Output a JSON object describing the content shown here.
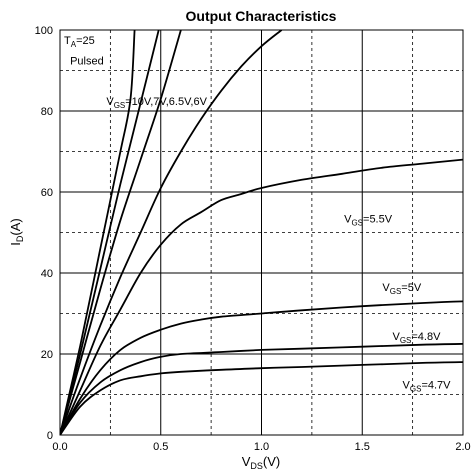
{
  "chart_data": {
    "type": "line",
    "title": "Output Characteristics",
    "xlabel": {
      "main": "V",
      "sub": "DS",
      "unit": "(V)"
    },
    "ylabel": {
      "main": "I",
      "sub": "D",
      "unit": "(A)"
    },
    "xlim": [
      0,
      2.0
    ],
    "ylim": [
      0,
      100
    ],
    "x_ticks": [
      {
        "value": 0.0,
        "label": "0.0"
      },
      {
        "value": 0.5,
        "label": "0.5"
      },
      {
        "value": 1.0,
        "label": "1.0"
      },
      {
        "value": 1.5,
        "label": "1.5"
      },
      {
        "value": 2.0,
        "label": "2.0"
      }
    ],
    "y_ticks": [
      {
        "value": 0,
        "label": "0"
      },
      {
        "value": 20,
        "label": "20"
      },
      {
        "value": 40,
        "label": "40"
      },
      {
        "value": 60,
        "label": "60"
      },
      {
        "value": 80,
        "label": "80"
      },
      {
        "value": 100,
        "label": "100"
      }
    ],
    "grid": {
      "major": true,
      "minor_dashed": true
    },
    "series": [
      {
        "x": [
          0,
          0.1,
          0.2,
          0.3,
          0.35,
          0.37
        ],
        "y": [
          0,
          22,
          46,
          70,
          83,
          100
        ]
      },
      {
        "x": [
          0,
          0.1,
          0.2,
          0.3,
          0.4,
          0.49
        ],
        "y": [
          0,
          20,
          41,
          62,
          82,
          100
        ]
      },
      {
        "x": [
          0,
          0.1,
          0.2,
          0.3,
          0.4,
          0.5,
          0.6
        ],
        "y": [
          0,
          18,
          36,
          53,
          68,
          83,
          100
        ]
      },
      {
        "x": [
          0,
          0.1,
          0.2,
          0.3,
          0.4,
          0.5,
          0.6,
          0.7,
          0.8,
          0.9,
          1.0,
          1.1
        ],
        "y": [
          0,
          14,
          27,
          39,
          50,
          61,
          70,
          78,
          85,
          91,
          96,
          100
        ]
      },
      {
        "x": [
          0,
          0.1,
          0.2,
          0.3,
          0.4,
          0.5,
          0.6,
          0.7,
          0.8,
          0.9,
          1.0,
          1.2,
          1.4,
          1.6,
          1.8,
          2.0
        ],
        "y": [
          0,
          11,
          22,
          31,
          40,
          47,
          52,
          55,
          58,
          59.5,
          61,
          63,
          64.5,
          66,
          67,
          68
        ]
      },
      {
        "x": [
          0,
          0.1,
          0.2,
          0.3,
          0.4,
          0.5,
          0.6,
          0.7,
          0.8,
          1.0,
          1.2,
          1.5,
          1.8,
          2.0
        ],
        "y": [
          0,
          9,
          16,
          21,
          24,
          26,
          27.5,
          28.5,
          29.2,
          30,
          30.8,
          31.8,
          32.6,
          33
        ]
      },
      {
        "x": [
          0,
          0.1,
          0.2,
          0.3,
          0.4,
          0.5,
          0.6,
          0.8,
          1.0,
          1.2,
          1.5,
          1.8,
          2.0
        ],
        "y": [
          0,
          8,
          13,
          16,
          18,
          19.3,
          20,
          20.5,
          21,
          21.3,
          21.8,
          22.3,
          22.5
        ]
      },
      {
        "x": [
          0,
          0.1,
          0.2,
          0.3,
          0.4,
          0.5,
          0.6,
          0.8,
          1.0,
          1.2,
          1.5,
          1.8,
          2.0
        ],
        "y": [
          0,
          7,
          11,
          13.5,
          14.5,
          15.2,
          15.6,
          16.1,
          16.5,
          16.8,
          17.3,
          17.8,
          18
        ]
      }
    ],
    "annotations": [
      {
        "id": "ta",
        "main": "T",
        "sub": "A",
        "rest": "=25",
        "x": 0.02,
        "y": 96.5
      },
      {
        "id": "pulsed",
        "text": "Pulsed",
        "x": 0.05,
        "y": 91.5
      },
      {
        "id": "vgs_hi",
        "main": "V",
        "sub": "GS",
        "rest": "=10V,7V,6.5V,6V",
        "x": 0.23,
        "y": 81.5
      },
      {
        "id": "vgs55",
        "main": "V",
        "sub": "GS",
        "rest": "=5.5V",
        "x": 1.41,
        "y": 52.5
      },
      {
        "id": "vgs5",
        "main": "V",
        "sub": "GS",
        "rest": "=5V",
        "x": 1.6,
        "y": 35.5
      },
      {
        "id": "vgs48",
        "main": "V",
        "sub": "GS",
        "rest": "=4.8V",
        "x": 1.65,
        "y": 23.5
      },
      {
        "id": "vgs47",
        "main": "V",
        "sub": "GS",
        "rest": "=4.7V",
        "x": 1.7,
        "y": 11.5
      }
    ]
  }
}
